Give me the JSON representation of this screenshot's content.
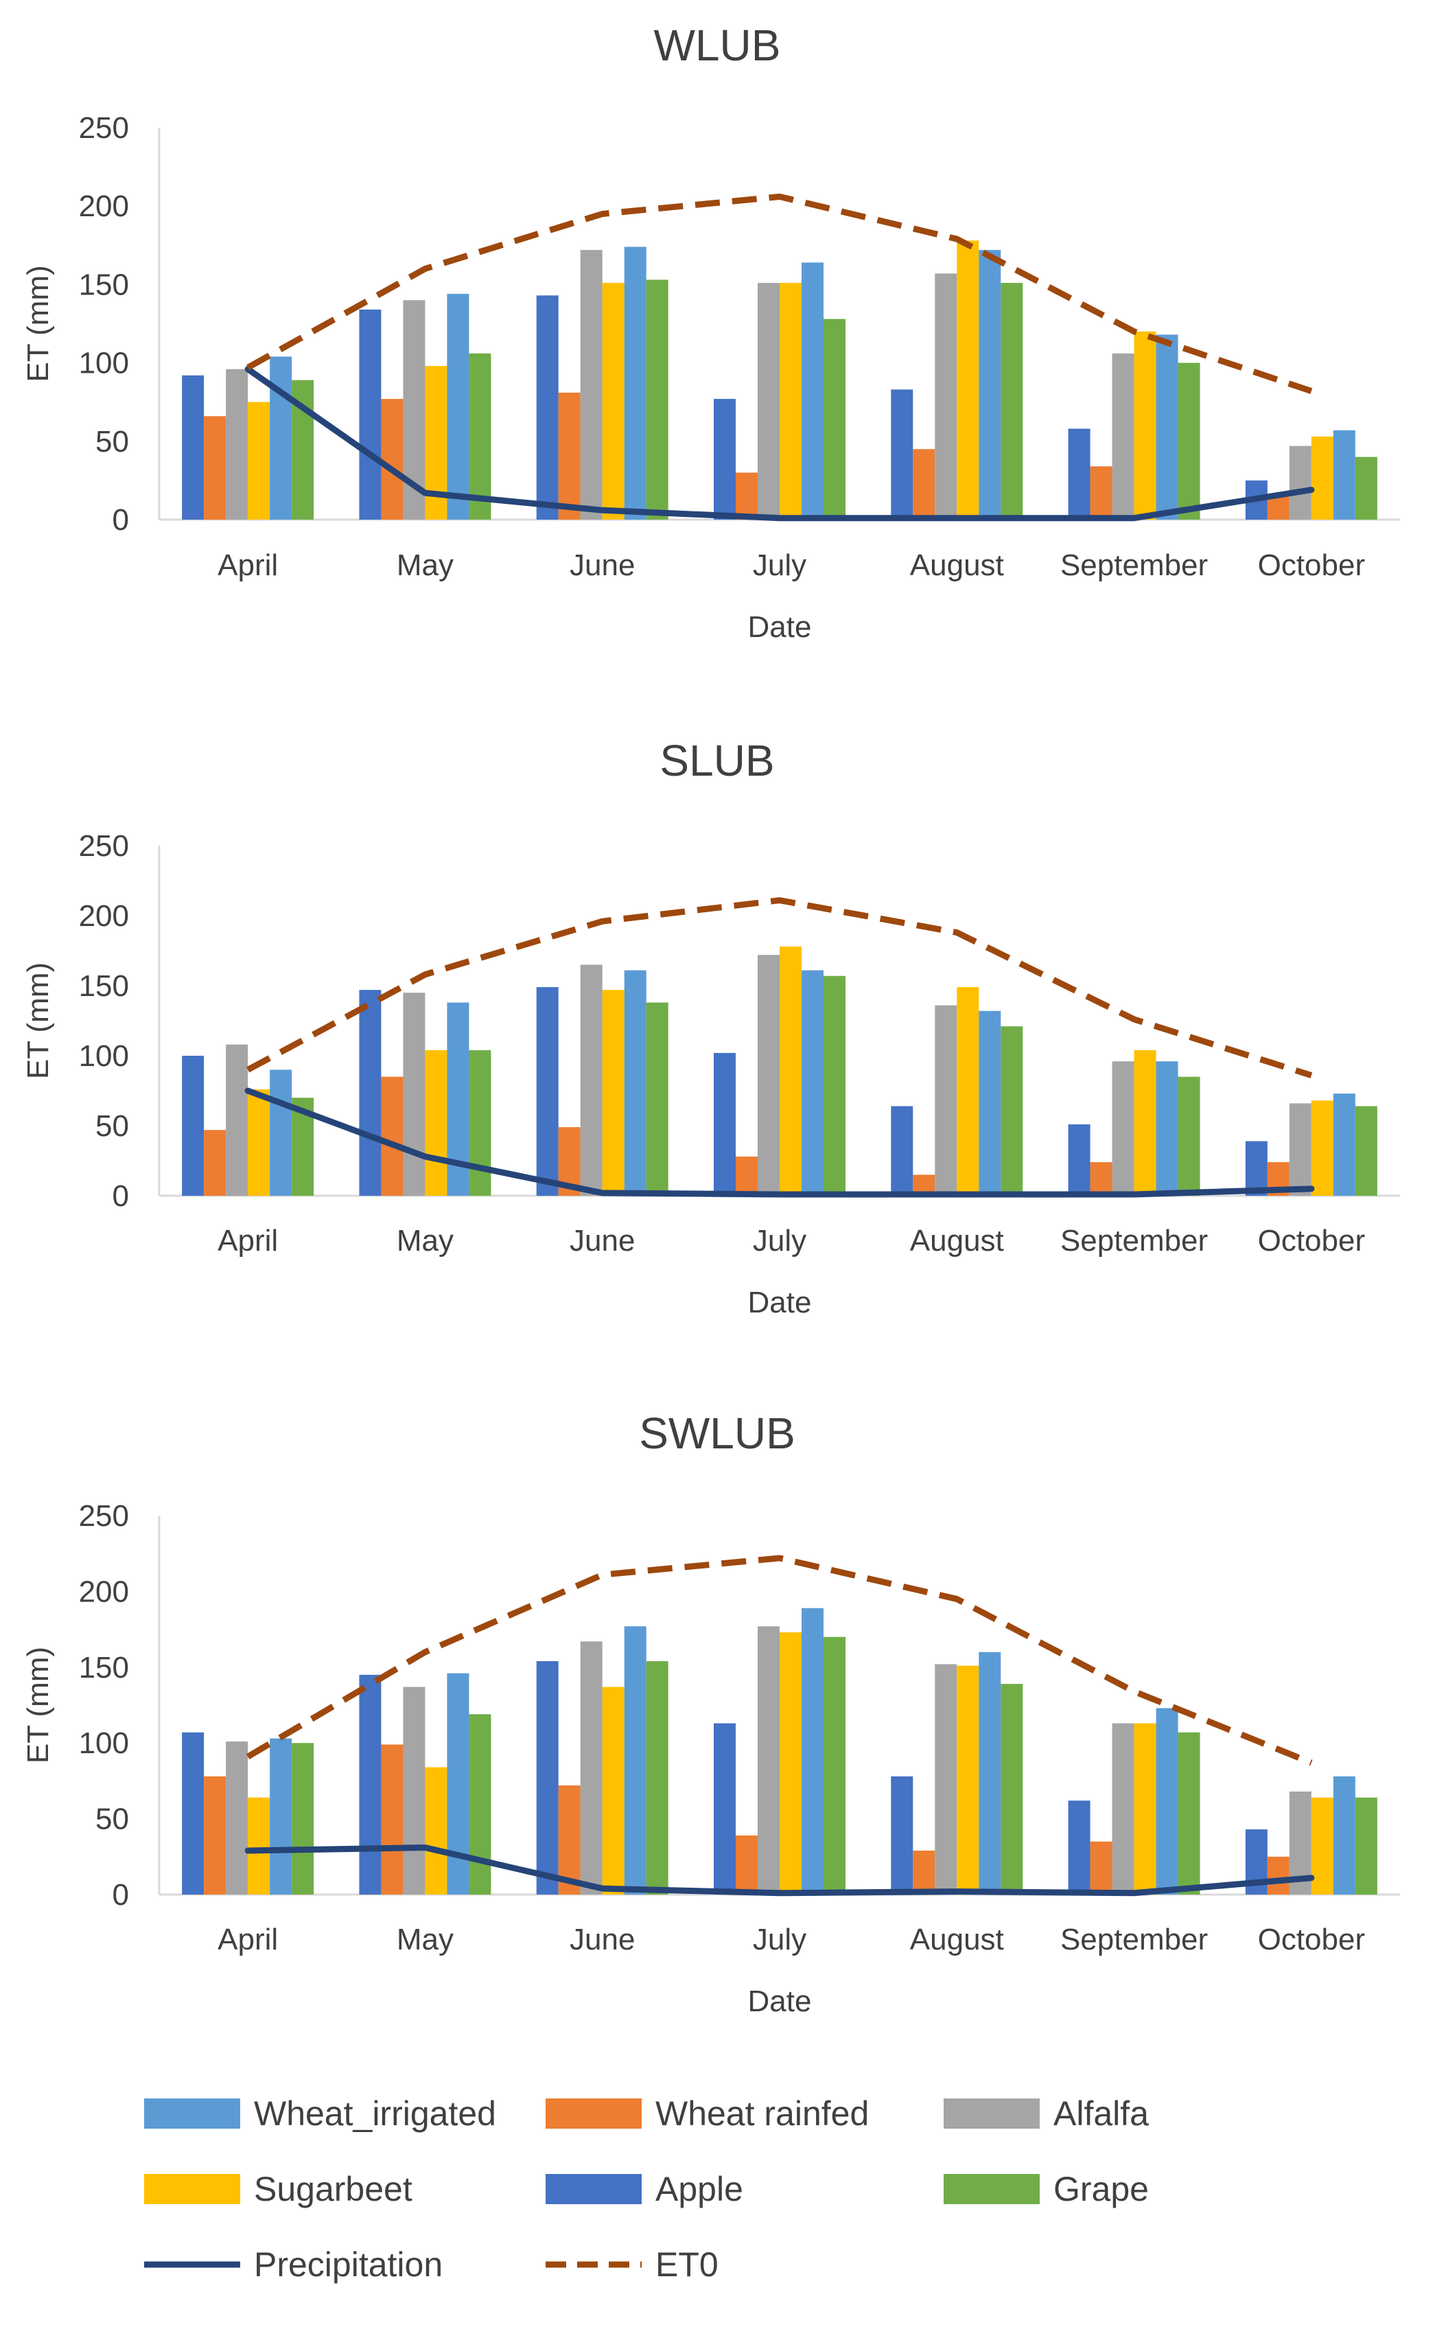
{
  "chart_data": [
    {
      "type": "bar",
      "title": "WLUB",
      "xlabel": "Date",
      "ylabel": "ET (mm)",
      "ylim": [
        0,
        250
      ],
      "yticks": [
        0,
        50,
        100,
        150,
        200,
        250
      ],
      "categories": [
        "April",
        "May",
        "June",
        "July",
        "August",
        "September",
        "October"
      ],
      "series": [
        {
          "name": "Apple",
          "values": [
            92,
            134,
            143,
            77,
            83,
            58,
            25
          ]
        },
        {
          "name": "Wheat rainfed",
          "values": [
            66,
            77,
            81,
            30,
            45,
            34,
            15
          ]
        },
        {
          "name": "Alfalfa",
          "values": [
            96,
            140,
            172,
            151,
            157,
            106,
            47
          ]
        },
        {
          "name": "Sugarbeet",
          "values": [
            75,
            98,
            151,
            151,
            178,
            120,
            53
          ]
        },
        {
          "name": "Wheat_irrigated",
          "values": [
            104,
            144,
            174,
            164,
            172,
            118,
            57
          ]
        },
        {
          "name": "Grape",
          "values": [
            89,
            106,
            153,
            128,
            151,
            100,
            40
          ]
        }
      ],
      "lines": [
        {
          "name": "Precipitation",
          "values": [
            96,
            17,
            6,
            1,
            1,
            1,
            19
          ]
        },
        {
          "name": "ET0",
          "values": [
            97,
            160,
            195,
            206,
            179,
            120,
            82
          ]
        }
      ]
    },
    {
      "type": "bar",
      "title": "SLUB",
      "xlabel": "Date",
      "ylabel": "ET (mm)",
      "ylim": [
        0,
        250
      ],
      "yticks": [
        0,
        50,
        100,
        150,
        200,
        250
      ],
      "categories": [
        "April",
        "May",
        "June",
        "July",
        "August",
        "September",
        "October"
      ],
      "series": [
        {
          "name": "Apple",
          "values": [
            100,
            147,
            149,
            102,
            64,
            51,
            39
          ]
        },
        {
          "name": "Wheat rainfed",
          "values": [
            47,
            85,
            49,
            28,
            15,
            24,
            24
          ]
        },
        {
          "name": "Alfalfa",
          "values": [
            108,
            145,
            165,
            172,
            136,
            96,
            66
          ]
        },
        {
          "name": "Sugarbeet",
          "values": [
            76,
            104,
            147,
            178,
            149,
            104,
            68
          ]
        },
        {
          "name": "Wheat_irrigated",
          "values": [
            90,
            138,
            161,
            161,
            132,
            96,
            73
          ]
        },
        {
          "name": "Grape",
          "values": [
            70,
            104,
            138,
            157,
            121,
            85,
            64
          ]
        }
      ],
      "lines": [
        {
          "name": "Precipitation",
          "values": [
            75,
            28,
            2,
            1,
            1,
            1,
            5
          ]
        },
        {
          "name": "ET0",
          "values": [
            90,
            158,
            196,
            211,
            188,
            126,
            86
          ]
        }
      ]
    },
    {
      "type": "bar",
      "title": "SWLUB",
      "xlabel": "Date",
      "ylabel": "ET (mm)",
      "ylim": [
        0,
        250
      ],
      "yticks": [
        0,
        50,
        100,
        150,
        200,
        250
      ],
      "categories": [
        "April",
        "May",
        "June",
        "July",
        "August",
        "September",
        "October"
      ],
      "series": [
        {
          "name": "Apple",
          "values": [
            107,
            145,
            154,
            113,
            78,
            62,
            43
          ]
        },
        {
          "name": "Wheat rainfed",
          "values": [
            78,
            99,
            72,
            39,
            29,
            35,
            25
          ]
        },
        {
          "name": "Alfalfa",
          "values": [
            101,
            137,
            167,
            177,
            152,
            113,
            68
          ]
        },
        {
          "name": "Sugarbeet",
          "values": [
            64,
            84,
            137,
            173,
            151,
            113,
            64
          ]
        },
        {
          "name": "Wheat_irrigated",
          "values": [
            103,
            146,
            177,
            189,
            160,
            123,
            78
          ]
        },
        {
          "name": "Grape",
          "values": [
            100,
            119,
            154,
            170,
            139,
            107,
            64
          ]
        }
      ],
      "lines": [
        {
          "name": "Precipitation",
          "values": [
            29,
            31,
            4,
            1,
            2,
            1,
            11
          ]
        },
        {
          "name": "ET0",
          "values": [
            91,
            160,
            211,
            222,
            195,
            134,
            87
          ]
        }
      ]
    }
  ],
  "legend": {
    "items": [
      {
        "name": "Wheat_irrigated",
        "kind": "box",
        "color": "#5b9bd5"
      },
      {
        "name": "Wheat rainfed",
        "kind": "box",
        "color": "#ed7d31"
      },
      {
        "name": "Alfalfa",
        "kind": "box",
        "color": "#a5a5a5"
      },
      {
        "name": "Sugarbeet",
        "kind": "box",
        "color": "#ffc000"
      },
      {
        "name": "Apple",
        "kind": "box",
        "color": "#4472c4"
      },
      {
        "name": "Grape",
        "kind": "box",
        "color": "#70ad47"
      },
      {
        "name": "Precipitation",
        "kind": "line",
        "color": "#264478"
      },
      {
        "name": "ET0",
        "kind": "dash",
        "color": "#9e480e"
      }
    ]
  },
  "colors": {
    "Apple": "#4472c4",
    "Wheat rainfed": "#ed7d31",
    "Alfalfa": "#a5a5a5",
    "Sugarbeet": "#ffc000",
    "Wheat_irrigated": "#5b9bd5",
    "Grape": "#70ad47",
    "Precipitation": "#264478",
    "ET0": "#9e480e"
  }
}
